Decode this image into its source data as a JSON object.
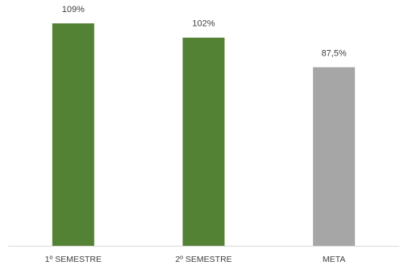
{
  "chart_data": {
    "type": "bar",
    "categories": [
      "1º SEMESTRE",
      "2º SEMESTRE",
      "META"
    ],
    "values": [
      109,
      102,
      87.5
    ],
    "data_labels": [
      "109%",
      "102%",
      "87,5%"
    ],
    "bar_colors": [
      "#548235",
      "#548235",
      "#a6a6a6"
    ],
    "ylim": [
      0,
      109
    ],
    "grid": false,
    "legend": "none"
  },
  "colors": {
    "baseline": "#d9d9d9",
    "label_text": "#404040"
  }
}
